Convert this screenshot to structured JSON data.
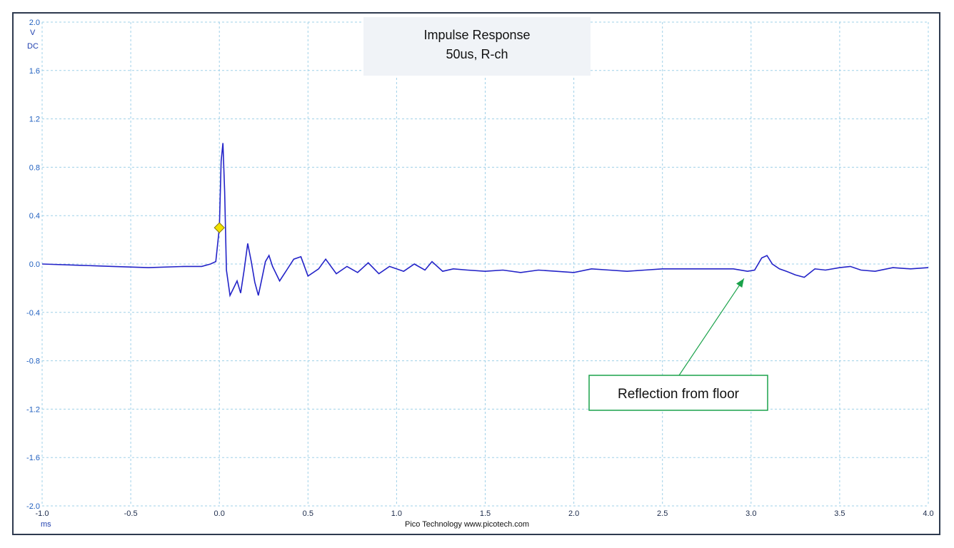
{
  "chart_data": {
    "type": "line",
    "title": "Impulse Response",
    "subtitle": "50us, R-ch",
    "ylabel_unit": "V",
    "ylabel_coupling": "DC",
    "xlabel_unit": "ms",
    "xlim": [
      -1.0,
      4.0
    ],
    "ylim": [
      -2.0,
      2.0
    ],
    "xticks": [
      "-1.0",
      "-0.5",
      "0.0",
      "0.5",
      "1.0",
      "1.5",
      "2.0",
      "2.5",
      "3.0",
      "3.5",
      "4.0"
    ],
    "yticks": [
      "2.0",
      "1.6",
      "1.2",
      "0.8",
      "0.4",
      "0.0",
      "-0.4",
      "-0.8",
      "-1.2",
      "-1.6",
      "-2.0"
    ],
    "grid": true,
    "series": [
      {
        "color": "#2323c8",
        "x": [
          -1.0,
          -0.8,
          -0.6,
          -0.4,
          -0.2,
          -0.1,
          -0.05,
          -0.02,
          0.0,
          0.01,
          0.02,
          0.03,
          0.04,
          0.06,
          0.08,
          0.1,
          0.12,
          0.14,
          0.16,
          0.18,
          0.2,
          0.22,
          0.24,
          0.26,
          0.28,
          0.3,
          0.34,
          0.38,
          0.42,
          0.46,
          0.5,
          0.56,
          0.6,
          0.66,
          0.72,
          0.78,
          0.84,
          0.9,
          0.96,
          1.04,
          1.1,
          1.16,
          1.2,
          1.26,
          1.32,
          1.4,
          1.5,
          1.6,
          1.7,
          1.8,
          1.9,
          2.0,
          2.1,
          2.2,
          2.3,
          2.4,
          2.5,
          2.6,
          2.7,
          2.8,
          2.9,
          2.98,
          3.02,
          3.06,
          3.09,
          3.12,
          3.16,
          3.2,
          3.25,
          3.3,
          3.36,
          3.42,
          3.5,
          3.56,
          3.62,
          3.7,
          3.8,
          3.9,
          4.0
        ],
        "values": [
          0.0,
          -0.01,
          -0.02,
          -0.03,
          -0.02,
          -0.02,
          0.0,
          0.02,
          0.3,
          0.85,
          1.0,
          0.6,
          -0.05,
          -0.26,
          -0.2,
          -0.14,
          -0.24,
          -0.05,
          0.17,
          0.02,
          -0.15,
          -0.26,
          -0.12,
          0.02,
          0.07,
          -0.02,
          -0.14,
          -0.05,
          0.04,
          0.06,
          -0.1,
          -0.04,
          0.04,
          -0.08,
          -0.02,
          -0.07,
          0.01,
          -0.08,
          -0.02,
          -0.06,
          0.0,
          -0.05,
          0.02,
          -0.06,
          -0.04,
          -0.05,
          -0.06,
          -0.05,
          -0.07,
          -0.05,
          -0.06,
          -0.07,
          -0.04,
          -0.05,
          -0.06,
          -0.05,
          -0.04,
          -0.04,
          -0.04,
          -0.04,
          -0.04,
          -0.06,
          -0.05,
          0.05,
          0.07,
          0.0,
          -0.04,
          -0.06,
          -0.09,
          -0.11,
          -0.04,
          -0.05,
          -0.03,
          -0.02,
          -0.05,
          -0.06,
          -0.03,
          -0.04,
          -0.03
        ]
      }
    ],
    "marker": {
      "x": 0.0,
      "y": 0.3,
      "color": "#f2e200"
    },
    "annotation": {
      "text": "Reflection from floor",
      "target_x": 2.96,
      "target_y": -0.12,
      "color": "#1aa24a"
    },
    "footer": "Pico Technology   www.picotech.com"
  }
}
